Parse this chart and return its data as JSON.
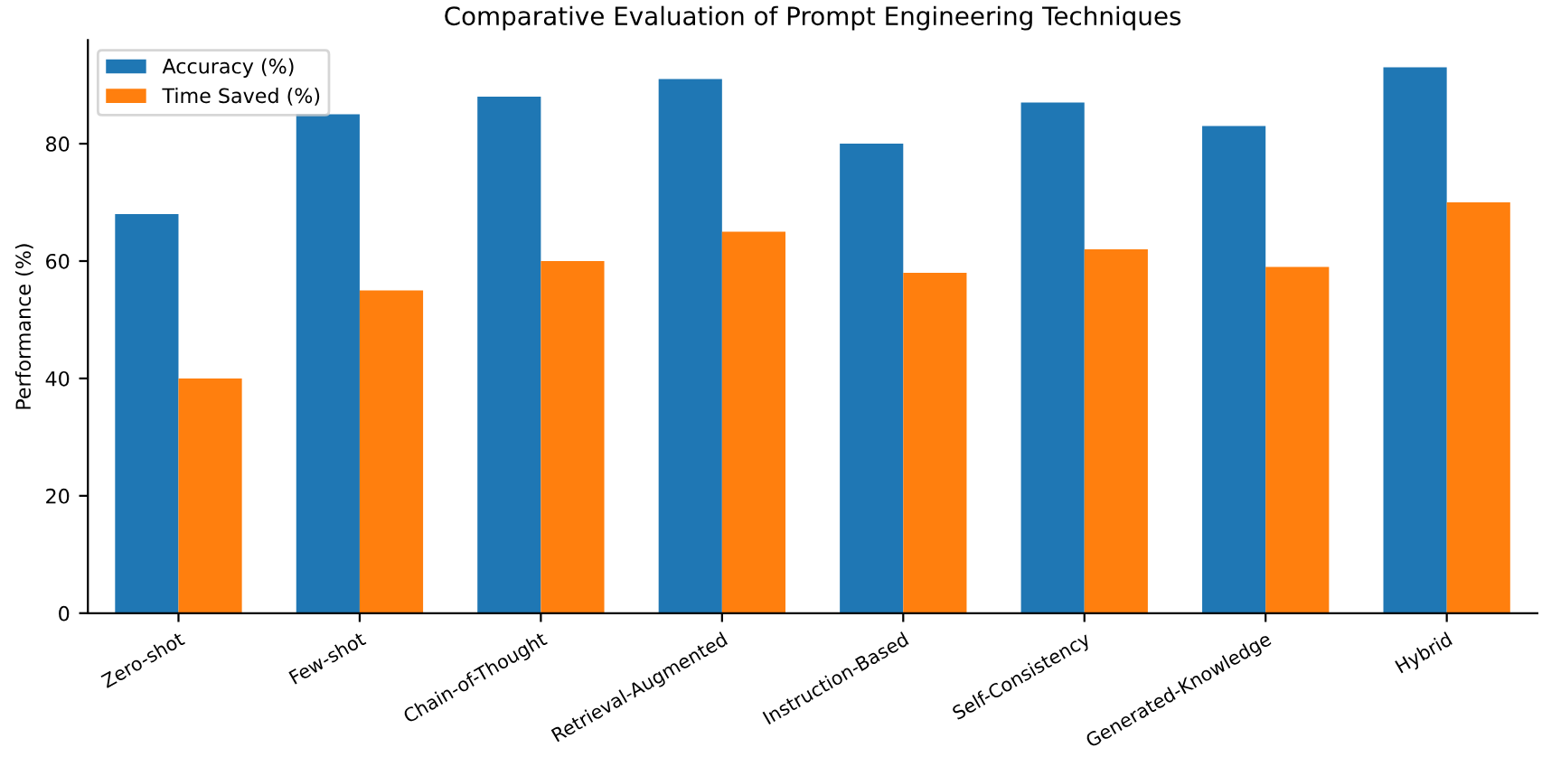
{
  "chart_data": {
    "type": "bar",
    "title": "Comparative Evaluation of Prompt Engineering Techniques",
    "ylabel": "Performance (%)",
    "categories": [
      "Zero-shot",
      "Few-shot",
      "Chain-of-Thought",
      "Retrieval-Augmented",
      "Instruction-Based",
      "Self-Consistency",
      "Generated-Knowledge",
      "Hybrid"
    ],
    "series": [
      {
        "name": "Accuracy (%)",
        "color": "#1f77b4",
        "values": [
          68,
          85,
          88,
          91,
          80,
          87,
          83,
          93
        ]
      },
      {
        "name": "Time Saved (%)",
        "color": "#ff7f0e",
        "values": [
          40,
          55,
          60,
          65,
          58,
          62,
          59,
          70
        ]
      }
    ],
    "ylim": [
      0,
      97.65
    ],
    "yticks": [
      0,
      20,
      40,
      60,
      80
    ],
    "grid": false,
    "legend": "top left"
  }
}
